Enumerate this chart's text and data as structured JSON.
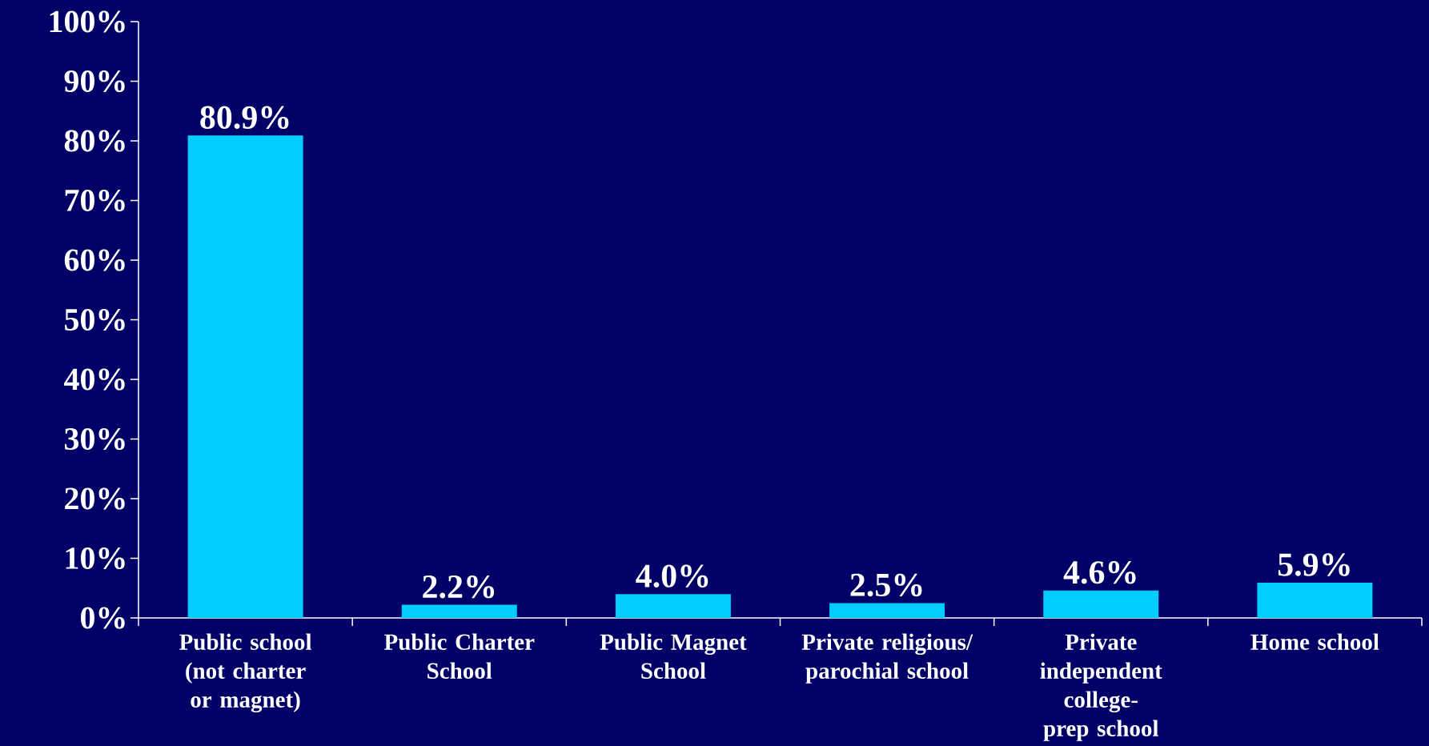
{
  "chart_data": {
    "type": "bar",
    "categories": [
      "Public school (not charter or magnet)",
      "Public Charter School",
      "Public Magnet School",
      "Private religious/ parochial school",
      "Private independent college-prep school",
      "Home school"
    ],
    "values": [
      80.9,
      2.2,
      4.0,
      2.5,
      4.6,
      5.9
    ],
    "value_labels": [
      "80.9%",
      "2.2%",
      "4.0%",
      "2.5%",
      "4.6%",
      "5.9%"
    ],
    "color": "#00ccff",
    "ylim": [
      0,
      100
    ],
    "yticks": [
      {
        "value": 0,
        "label": "0%"
      },
      {
        "value": 10,
        "label": "10%"
      },
      {
        "value": 20,
        "label": "20%"
      },
      {
        "value": 30,
        "label": "30%"
      },
      {
        "value": 40,
        "label": "40%"
      },
      {
        "value": 50,
        "label": "50%"
      },
      {
        "value": 60,
        "label": "60%"
      },
      {
        "value": 70,
        "label": "70%"
      },
      {
        "value": 80,
        "label": "80%"
      },
      {
        "value": 90,
        "label": "90%"
      },
      {
        "value": 100,
        "label": "100%"
      }
    ],
    "grid": false
  }
}
